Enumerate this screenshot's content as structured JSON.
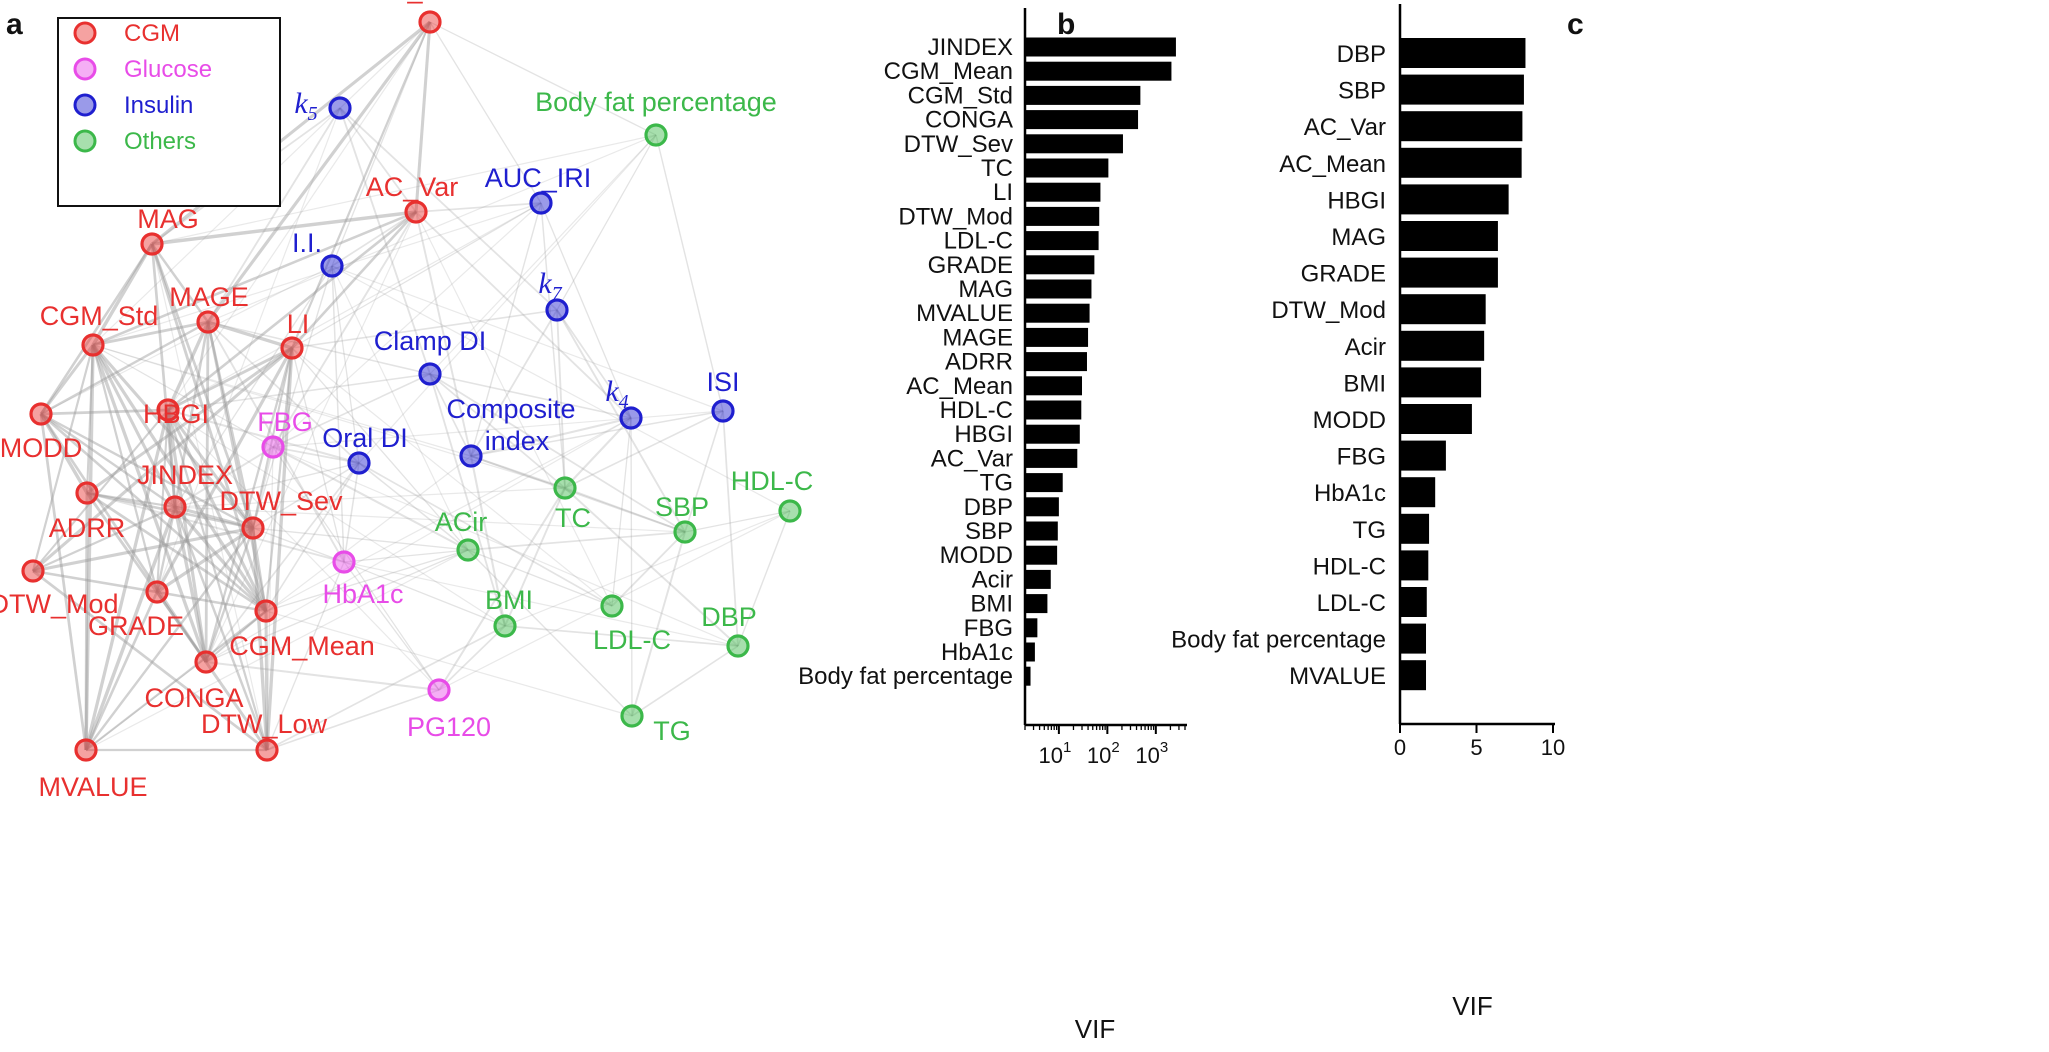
{
  "chart_data": [
    {
      "type": "network",
      "panel": "a",
      "legend": [
        {
          "category": "CGM",
          "label": "CGM",
          "color": "#e8302f"
        },
        {
          "category": "Glucose",
          "label": "Glucose",
          "color": "#e84ce8"
        },
        {
          "category": "Insulin",
          "label": "Insulin",
          "color": "#1f1fcf"
        },
        {
          "category": "Others",
          "label": "Others",
          "color": "#3cb84a"
        }
      ],
      "nodes": [
        {
          "id": "AC_Mean",
          "label": "AC_Mean",
          "category": "CGM"
        },
        {
          "id": "k5",
          "label": "k",
          "sub": "5",
          "category": "Insulin"
        },
        {
          "id": "BodyFat",
          "label": "Body fat percentage",
          "category": "Others"
        },
        {
          "id": "AC_Var",
          "label": "AC_Var",
          "category": "CGM"
        },
        {
          "id": "AUC_IRI",
          "label": "AUC_IRI",
          "category": "Insulin"
        },
        {
          "id": "MAG",
          "label": "MAG",
          "category": "CGM"
        },
        {
          "id": "II",
          "label": "I.I.",
          "category": "Insulin"
        },
        {
          "id": "k7",
          "label": "k",
          "sub": "7",
          "category": "Insulin"
        },
        {
          "id": "CGM_Std",
          "label": "CGM_Std",
          "category": "CGM"
        },
        {
          "id": "MAGE",
          "label": "MAGE",
          "category": "CGM"
        },
        {
          "id": "LI",
          "label": "LI",
          "category": "CGM"
        },
        {
          "id": "ClampDI",
          "label": "Clamp DI",
          "category": "Insulin"
        },
        {
          "id": "HBGI",
          "label": "HBGI",
          "category": "CGM"
        },
        {
          "id": "MODD",
          "label": "MODD",
          "category": "CGM"
        },
        {
          "id": "k4",
          "label": "k",
          "sub": "4",
          "category": "Insulin"
        },
        {
          "id": "ISI",
          "label": "ISI",
          "category": "Insulin"
        },
        {
          "id": "FBG",
          "label": "FBG",
          "category": "Glucose"
        },
        {
          "id": "OralDI",
          "label": "Oral DI",
          "category": "Insulin"
        },
        {
          "id": "Composite",
          "label": "Composite",
          "label2": "index",
          "category": "Insulin"
        },
        {
          "id": "JINDEX",
          "label": "JINDEX",
          "category": "CGM"
        },
        {
          "id": "ADRR",
          "label": "ADRR",
          "category": "CGM"
        },
        {
          "id": "DTW_Sev",
          "label": "DTW_Sev",
          "category": "CGM"
        },
        {
          "id": "TC",
          "label": "TC",
          "category": "Others"
        },
        {
          "id": "HDL_C",
          "label": "HDL-C",
          "category": "Others"
        },
        {
          "id": "SBP",
          "label": "SBP",
          "category": "Others"
        },
        {
          "id": "ACir",
          "label": "ACir",
          "category": "Others"
        },
        {
          "id": "DTW_Mod",
          "label": "DTW_Mod",
          "category": "CGM"
        },
        {
          "id": "HbA1c",
          "label": "HbA1c",
          "category": "Glucose"
        },
        {
          "id": "GRADE",
          "label": "GRADE",
          "category": "CGM"
        },
        {
          "id": "CGM_Mean",
          "label": "CGM_Mean",
          "category": "CGM"
        },
        {
          "id": "BMI",
          "label": "BMI",
          "category": "Others"
        },
        {
          "id": "LDL_C",
          "label": "LDL-C",
          "category": "Others"
        },
        {
          "id": "DBP",
          "label": "DBP",
          "category": "Others"
        },
        {
          "id": "CONGA",
          "label": "CONGA",
          "category": "CGM"
        },
        {
          "id": "PG120",
          "label": "PG120",
          "category": "Glucose"
        },
        {
          "id": "TG",
          "label": "TG",
          "category": "Others"
        },
        {
          "id": "DTW_Low",
          "label": "DTW_Low",
          "category": "CGM"
        },
        {
          "id": "MVALUE",
          "label": "MVALUE",
          "category": "CGM"
        }
      ]
    },
    {
      "type": "bar",
      "orientation": "horizontal",
      "panel": "b",
      "xscale": "log",
      "xlabel": "VIF",
      "xlim": [
        2,
        4000
      ],
      "xticks": [
        {
          "base": "10",
          "exp": "1",
          "value": 10
        },
        {
          "base": "10",
          "exp": "2",
          "value": 100
        },
        {
          "base": "10",
          "exp": "3",
          "value": 1000
        }
      ],
      "categories": [
        "JINDEX",
        "CGM_Mean",
        "CGM_Std",
        "CONGA",
        "DTW_Sev",
        "TC",
        "LI",
        "DTW_Mod",
        "LDL-C",
        "GRADE",
        "MAG",
        "MVALUE",
        "MAGE",
        "ADRR",
        "AC_Mean",
        "HDL-C",
        "HBGI",
        "AC_Var",
        "TG",
        "DBP",
        "SBP",
        "MODD",
        "Acir",
        "BMI",
        "FBG",
        "HbA1c",
        "Body fat percentage"
      ],
      "values": [
        2600,
        2100,
        480,
        430,
        210,
        105,
        72,
        68,
        66,
        54,
        47,
        43,
        40,
        38,
        30,
        29,
        27,
        24,
        12,
        10,
        9.5,
        9.2,
        6.8,
        5.8,
        3.6,
        3.2,
        2.6
      ]
    },
    {
      "type": "bar",
      "orientation": "horizontal",
      "panel": "c",
      "xscale": "linear",
      "xlabel": "VIF",
      "xlim": [
        0,
        10
      ],
      "xticks": [
        "0",
        "5",
        "10"
      ],
      "categories": [
        "DBP",
        "SBP",
        "AC_Var",
        "AC_Mean",
        "HBGI",
        "MAG",
        "GRADE",
        "DTW_Mod",
        "Acir",
        "BMI",
        "MODD",
        "FBG",
        "HbA1c",
        "TG",
        "HDL-C",
        "LDL-C",
        "Body fat percentage",
        "MVALUE"
      ],
      "values": [
        8.2,
        8.1,
        8.0,
        7.95,
        7.1,
        6.4,
        6.4,
        5.6,
        5.5,
        5.3,
        4.7,
        3.0,
        2.3,
        1.9,
        1.85,
        1.75,
        1.7,
        1.7
      ]
    }
  ]
}
